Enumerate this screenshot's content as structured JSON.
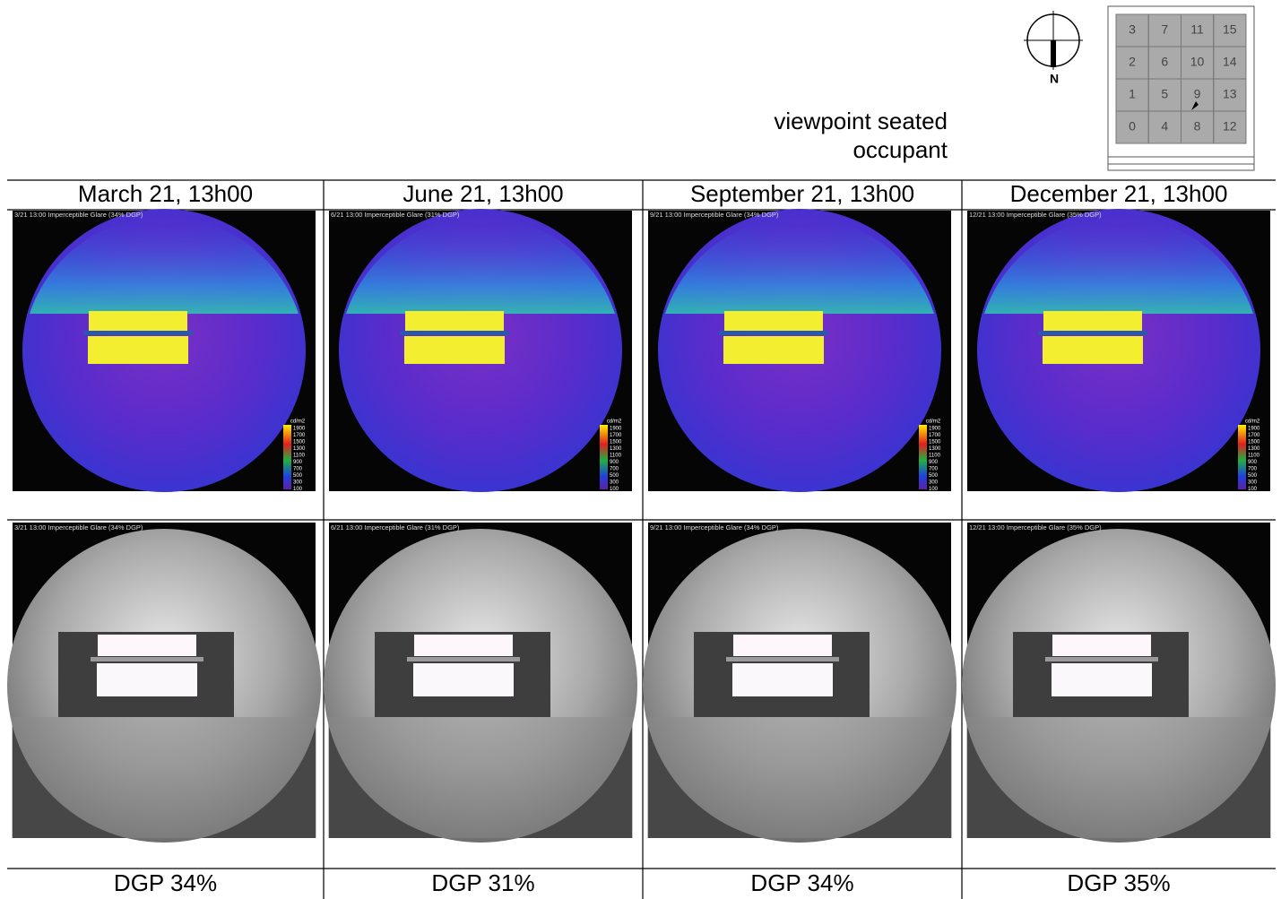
{
  "header": {
    "viewpoint_lines": [
      "viewpoint seated",
      "occupant"
    ],
    "compass": "N",
    "plan": {
      "rows": [
        [
          "3",
          "7",
          "11",
          "15"
        ],
        [
          "2",
          "6",
          "10",
          "14"
        ],
        [
          "1",
          "5",
          "9",
          "13"
        ],
        [
          "0",
          "4",
          "8",
          "12"
        ]
      ]
    }
  },
  "legend": {
    "unit": "cd/m2",
    "values": [
      "1900",
      "1700",
      "1500",
      "1300",
      "1100",
      "900",
      "700",
      "500",
      "300",
      "100"
    ]
  },
  "columns": [
    {
      "date": "March 21, 13h00",
      "caption": "3/21 13:00  Imperceptible Glare (34% DGP)",
      "dgp": "DGP 34%"
    },
    {
      "date": "June 21, 13h00",
      "caption": "6/21 13:00  Imperceptible Glare (31% DGP)",
      "dgp": "DGP 31%"
    },
    {
      "date": "September 21, 13h00",
      "caption": "9/21 13:00  Imperceptible Glare (34% DGP)",
      "dgp": "DGP 34%"
    },
    {
      "date": "December 21, 13h00",
      "caption": "12/21 13:00  Imperceptible Glare (35% DGP)",
      "dgp": "DGP 35%"
    }
  ]
}
